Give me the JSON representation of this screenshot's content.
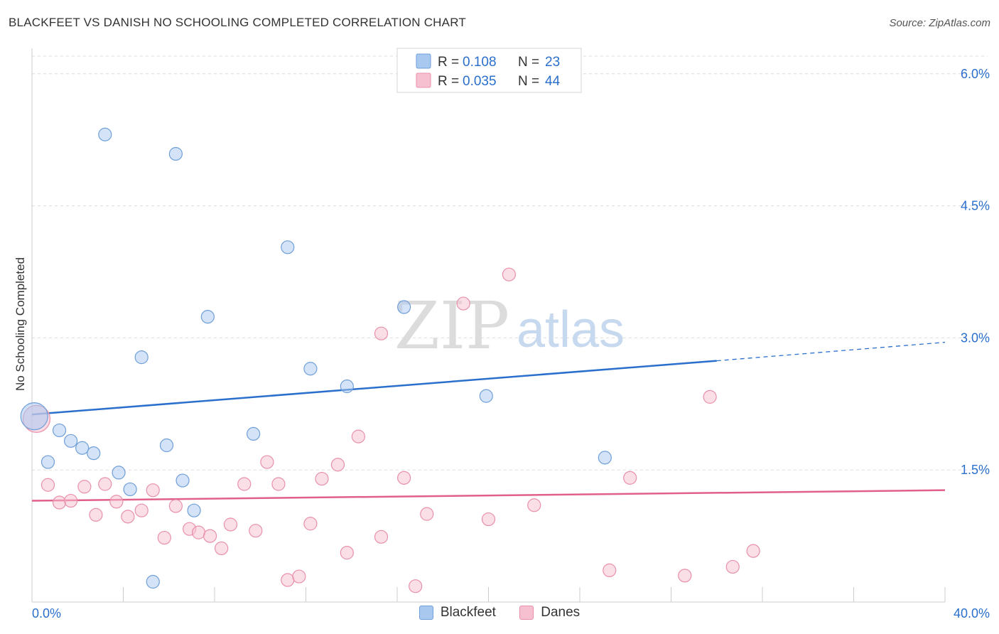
{
  "header": {
    "title": "BLACKFEET VS DANISH NO SCHOOLING COMPLETED CORRELATION CHART",
    "source": "Source: ZipAtlas.com"
  },
  "watermark": {
    "zip": "ZIP",
    "atlas": "atlas"
  },
  "legend": {
    "r_label": "R =",
    "n_label": "N =",
    "rows": [
      {
        "r": "0.108",
        "n": "23"
      },
      {
        "r": "0.035",
        "n": "44"
      }
    ]
  },
  "chart_data": {
    "type": "scatter",
    "title": "BLACKFEET VS DANISH NO SCHOOLING COMPLETED CORRELATION CHART",
    "xlabel": "",
    "ylabel": "No Schooling Completed",
    "xlim": [
      0,
      40
    ],
    "ylim": [
      0,
      6.2
    ],
    "x_tick_labels": [
      "0.0%",
      "40.0%"
    ],
    "y_ticks": [
      1.5,
      3.0,
      4.5,
      6.0
    ],
    "y_tick_labels": [
      "1.5%",
      "3.0%",
      "4.5%",
      "6.0%"
    ],
    "grid": true,
    "legend_position": "top-center",
    "series": [
      {
        "name": "Blackfeet",
        "color": "#a9c8f0",
        "stroke": "#6f9fd8",
        "line_color": "#2a6fcc",
        "R": 0.108,
        "N": 23,
        "trend": {
          "x0": 0,
          "y0": 2.13,
          "x1": 30,
          "y1": 2.74,
          "x_dash_end": 40,
          "y_dash_end": 2.95
        },
        "points": [
          {
            "x": 0.1,
            "y": 2.11,
            "big": true
          },
          {
            "x": 1.2,
            "y": 1.95
          },
          {
            "x": 0.7,
            "y": 1.59
          },
          {
            "x": 1.7,
            "y": 1.83
          },
          {
            "x": 2.2,
            "y": 1.75
          },
          {
            "x": 2.7,
            "y": 1.69
          },
          {
            "x": 3.2,
            "y": 5.31
          },
          {
            "x": 3.8,
            "y": 1.47
          },
          {
            "x": 4.3,
            "y": 1.28
          },
          {
            "x": 4.8,
            "y": 2.78
          },
          {
            "x": 5.3,
            "y": 0.23
          },
          {
            "x": 5.9,
            "y": 1.78
          },
          {
            "x": 6.3,
            "y": 5.09
          },
          {
            "x": 6.6,
            "y": 1.38
          },
          {
            "x": 7.1,
            "y": 1.04
          },
          {
            "x": 7.7,
            "y": 3.24
          },
          {
            "x": 9.7,
            "y": 1.91
          },
          {
            "x": 11.2,
            "y": 4.03
          },
          {
            "x": 12.2,
            "y": 2.65
          },
          {
            "x": 13.8,
            "y": 2.45
          },
          {
            "x": 16.3,
            "y": 3.35
          },
          {
            "x": 19.9,
            "y": 2.34
          },
          {
            "x": 25.1,
            "y": 1.64
          }
        ]
      },
      {
        "name": "Danes",
        "color": "#f7c0d0",
        "stroke": "#e890aa",
        "line_color": "#e0608a",
        "R": 0.035,
        "N": 44,
        "trend": {
          "x0": 0,
          "y0": 1.15,
          "x1": 40,
          "y1": 1.27
        },
        "points": [
          {
            "x": 0.2,
            "y": 2.08,
            "big": true
          },
          {
            "x": 0.7,
            "y": 1.33
          },
          {
            "x": 1.2,
            "y": 1.13
          },
          {
            "x": 1.7,
            "y": 1.15
          },
          {
            "x": 2.3,
            "y": 1.31
          },
          {
            "x": 2.8,
            "y": 0.99
          },
          {
            "x": 3.2,
            "y": 1.34
          },
          {
            "x": 3.7,
            "y": 1.14
          },
          {
            "x": 4.2,
            "y": 0.97
          },
          {
            "x": 4.8,
            "y": 1.04
          },
          {
            "x": 5.3,
            "y": 1.27
          },
          {
            "x": 5.8,
            "y": 0.73
          },
          {
            "x": 6.3,
            "y": 1.09
          },
          {
            "x": 6.9,
            "y": 0.83
          },
          {
            "x": 7.3,
            "y": 0.79
          },
          {
            "x": 7.8,
            "y": 0.75
          },
          {
            "x": 8.3,
            "y": 0.61
          },
          {
            "x": 8.7,
            "y": 0.88
          },
          {
            "x": 9.3,
            "y": 1.34
          },
          {
            "x": 9.8,
            "y": 0.81
          },
          {
            "x": 10.3,
            "y": 1.59
          },
          {
            "x": 10.8,
            "y": 1.34
          },
          {
            "x": 11.2,
            "y": 0.25
          },
          {
            "x": 11.7,
            "y": 0.29
          },
          {
            "x": 12.2,
            "y": 0.89
          },
          {
            "x": 12.7,
            "y": 1.4
          },
          {
            "x": 13.4,
            "y": 1.56
          },
          {
            "x": 13.8,
            "y": 0.56
          },
          {
            "x": 14.3,
            "y": 1.88
          },
          {
            "x": 15.3,
            "y": 0.74
          },
          {
            "x": 15.3,
            "y": 3.05
          },
          {
            "x": 16.3,
            "y": 1.41
          },
          {
            "x": 16.8,
            "y": 0.18
          },
          {
            "x": 17.3,
            "y": 1.0
          },
          {
            "x": 18.9,
            "y": 3.39
          },
          {
            "x": 20.0,
            "y": 0.94
          },
          {
            "x": 20.9,
            "y": 3.72
          },
          {
            "x": 22.0,
            "y": 1.1
          },
          {
            "x": 25.3,
            "y": 0.36
          },
          {
            "x": 26.2,
            "y": 1.41
          },
          {
            "x": 28.6,
            "y": 0.3
          },
          {
            "x": 29.7,
            "y": 2.33
          },
          {
            "x": 30.7,
            "y": 0.4
          },
          {
            "x": 31.6,
            "y": 0.58
          }
        ]
      }
    ]
  }
}
